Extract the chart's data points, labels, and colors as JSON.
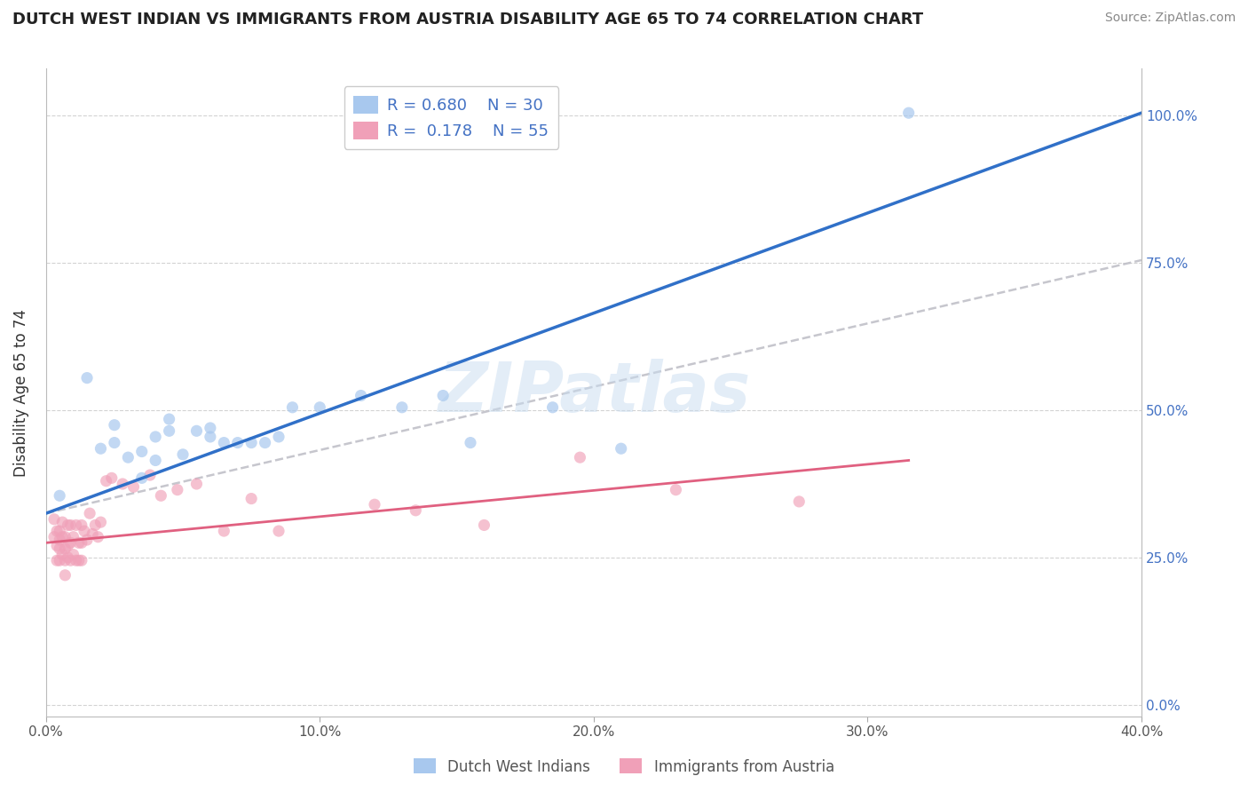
{
  "title": "DUTCH WEST INDIAN VS IMMIGRANTS FROM AUSTRIA DISABILITY AGE 65 TO 74 CORRELATION CHART",
  "source": "Source: ZipAtlas.com",
  "ylabel": "Disability Age 65 to 74",
  "xlim": [
    0.0,
    0.4
  ],
  "ylim": [
    -0.02,
    1.08
  ],
  "yticks": [
    0.0,
    0.25,
    0.5,
    0.75,
    1.0
  ],
  "ytick_labels": [
    "0.0%",
    "25.0%",
    "50.0%",
    "75.0%",
    "100.0%"
  ],
  "xticks": [
    0.0,
    0.1,
    0.2,
    0.3,
    0.4
  ],
  "xtick_labels": [
    "0.0%",
    "10.0%",
    "20.0%",
    "30.0%",
    "40.0%"
  ],
  "legend_labels": [
    "Dutch West Indians",
    "Immigrants from Austria"
  ],
  "R_blue": 0.68,
  "N_blue": 30,
  "R_pink": 0.178,
  "N_pink": 55,
  "blue_color": "#A8C8EE",
  "pink_color": "#F0A0B8",
  "blue_line_color": "#3070C8",
  "pink_line_color": "#E06080",
  "gray_dash_color": "#C0C0C8",
  "watermark": "ZIPatlas",
  "blue_scatter_x": [
    0.005,
    0.015,
    0.02,
    0.025,
    0.025,
    0.03,
    0.035,
    0.035,
    0.04,
    0.04,
    0.045,
    0.045,
    0.05,
    0.055,
    0.06,
    0.06,
    0.065,
    0.07,
    0.075,
    0.08,
    0.085,
    0.09,
    0.1,
    0.115,
    0.13,
    0.145,
    0.155,
    0.185,
    0.21,
    0.315
  ],
  "blue_scatter_y": [
    0.355,
    0.555,
    0.435,
    0.475,
    0.445,
    0.42,
    0.43,
    0.385,
    0.415,
    0.455,
    0.465,
    0.485,
    0.425,
    0.465,
    0.455,
    0.47,
    0.445,
    0.445,
    0.445,
    0.445,
    0.455,
    0.505,
    0.505,
    0.525,
    0.505,
    0.525,
    0.445,
    0.505,
    0.435,
    1.005
  ],
  "pink_scatter_x": [
    0.003,
    0.003,
    0.004,
    0.004,
    0.004,
    0.005,
    0.005,
    0.005,
    0.005,
    0.006,
    0.006,
    0.006,
    0.007,
    0.007,
    0.007,
    0.007,
    0.008,
    0.008,
    0.008,
    0.009,
    0.009,
    0.009,
    0.01,
    0.01,
    0.011,
    0.011,
    0.012,
    0.012,
    0.013,
    0.013,
    0.013,
    0.014,
    0.015,
    0.016,
    0.017,
    0.018,
    0.019,
    0.02,
    0.022,
    0.024,
    0.028,
    0.032,
    0.038,
    0.042,
    0.048,
    0.055,
    0.065,
    0.075,
    0.085,
    0.12,
    0.135,
    0.16,
    0.195,
    0.23,
    0.275
  ],
  "pink_scatter_y": [
    0.315,
    0.285,
    0.295,
    0.27,
    0.245,
    0.295,
    0.28,
    0.265,
    0.245,
    0.31,
    0.285,
    0.255,
    0.285,
    0.265,
    0.245,
    0.22,
    0.305,
    0.27,
    0.25,
    0.305,
    0.275,
    0.245,
    0.285,
    0.255,
    0.305,
    0.245,
    0.275,
    0.245,
    0.305,
    0.275,
    0.245,
    0.295,
    0.28,
    0.325,
    0.29,
    0.305,
    0.285,
    0.31,
    0.38,
    0.385,
    0.375,
    0.37,
    0.39,
    0.355,
    0.365,
    0.375,
    0.295,
    0.35,
    0.295,
    0.34,
    0.33,
    0.305,
    0.42,
    0.365,
    0.345
  ],
  "blue_line_x": [
    0.0,
    0.4
  ],
  "blue_line_y": [
    0.325,
    1.005
  ],
  "pink_line_x": [
    0.0,
    0.315
  ],
  "pink_line_y": [
    0.275,
    0.415
  ],
  "gray_line_x": [
    0.0,
    0.4
  ],
  "gray_line_y": [
    0.325,
    0.755
  ]
}
